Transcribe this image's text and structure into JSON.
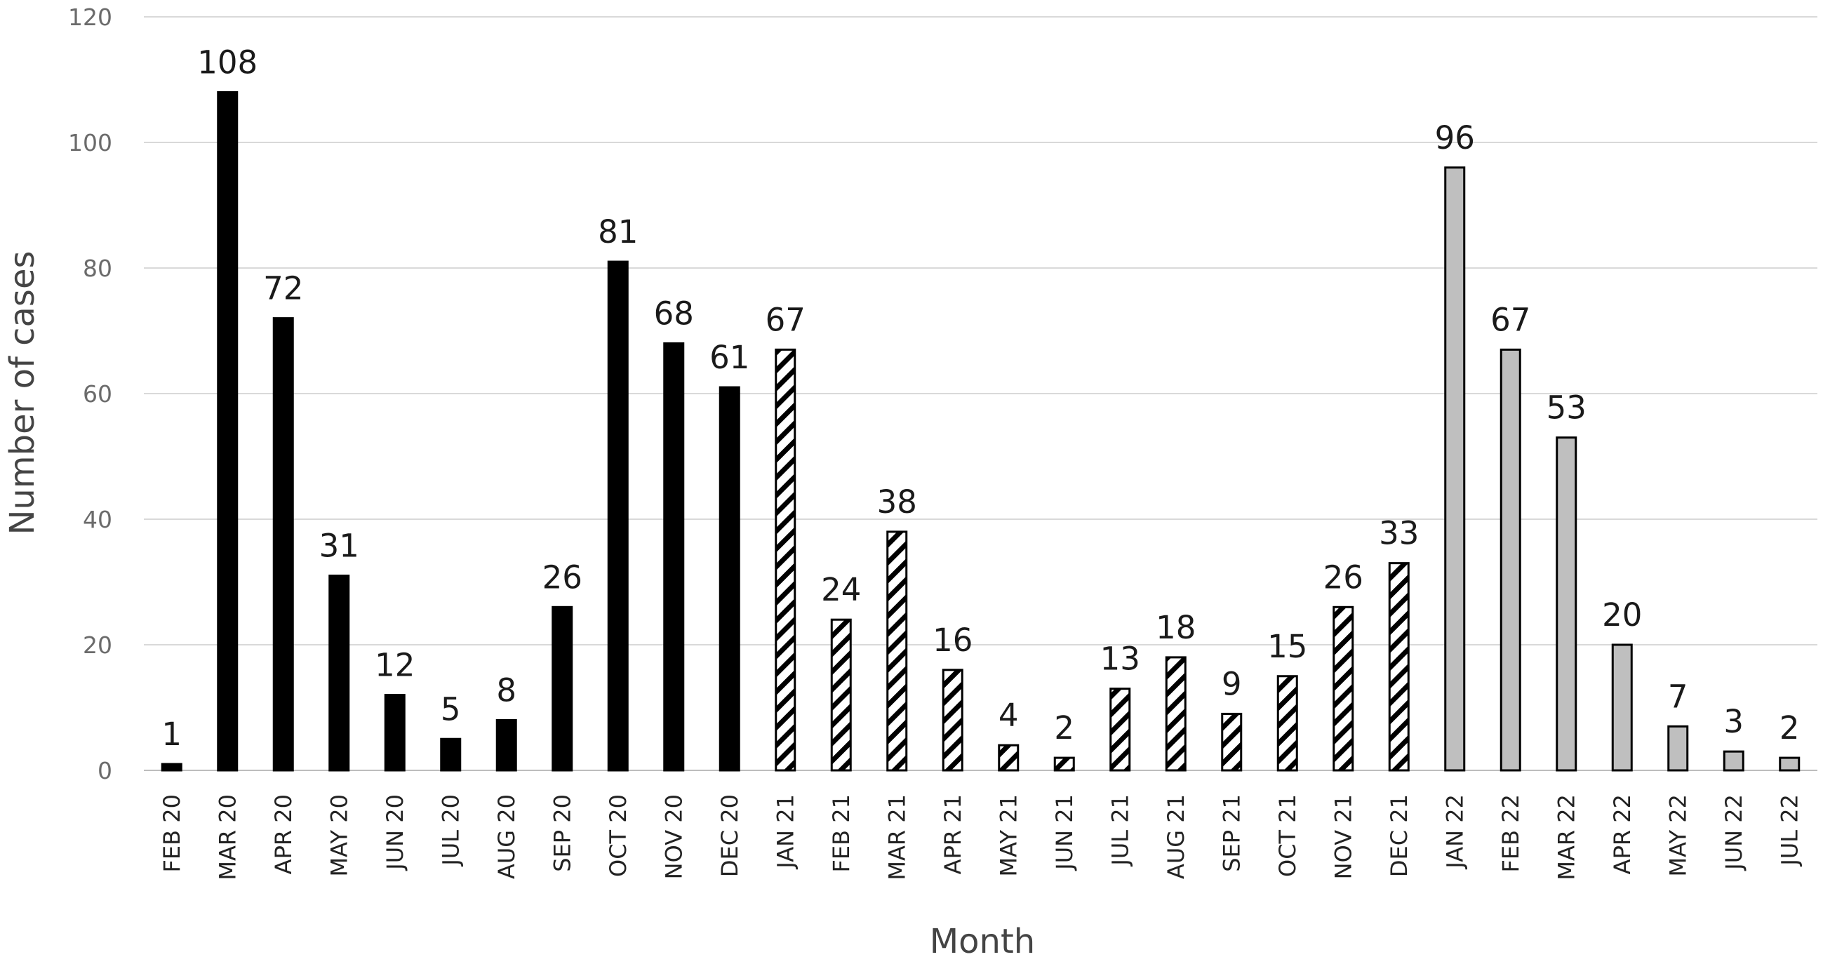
{
  "chart_data": {
    "type": "bar",
    "xlabel": "Month",
    "ylabel": "Number of cases",
    "ylim": [
      0,
      120
    ],
    "yticks": [
      0,
      20,
      40,
      60,
      80,
      100,
      120
    ],
    "grid": true,
    "legend": "none",
    "categories": [
      "FEB 20",
      "MAR 20",
      "APR 20",
      "MAY 20",
      "JUN 20",
      "JUL 20",
      "AUG 20",
      "SEP 20",
      "OCT 20",
      "NOV 20",
      "DEC 20",
      "JAN 21",
      "FEB 21",
      "MAR 21",
      "APR 21",
      "MAY 21",
      "JUN 21",
      "JUL 21",
      "AUG 21",
      "SEP 21",
      "OCT 21",
      "NOV 21",
      "DEC 21",
      "JAN 22",
      "FEB 22",
      "MAR 22",
      "APR 22",
      "MAY 22",
      "JUN 22",
      "JUL 22"
    ],
    "values": [
      1,
      108,
      72,
      31,
      12,
      5,
      8,
      26,
      81,
      68,
      61,
      67,
      24,
      38,
      16,
      4,
      2,
      13,
      18,
      9,
      15,
      26,
      33,
      96,
      67,
      53,
      20,
      7,
      3,
      2
    ],
    "bar_styles": [
      "solid",
      "solid",
      "solid",
      "solid",
      "solid",
      "solid",
      "solid",
      "solid",
      "solid",
      "solid",
      "solid",
      "hatched",
      "hatched",
      "hatched",
      "hatched",
      "hatched",
      "hatched",
      "hatched",
      "hatched",
      "hatched",
      "hatched",
      "hatched",
      "hatched",
      "gray",
      "gray",
      "gray",
      "gray",
      "gray",
      "gray",
      "gray"
    ],
    "colors": {
      "solid": "#000000",
      "hatched_fill": "#ffffff",
      "hatched_line": "#000000",
      "gray": "#bfbfbf",
      "grid": "#d9d9d9"
    }
  }
}
